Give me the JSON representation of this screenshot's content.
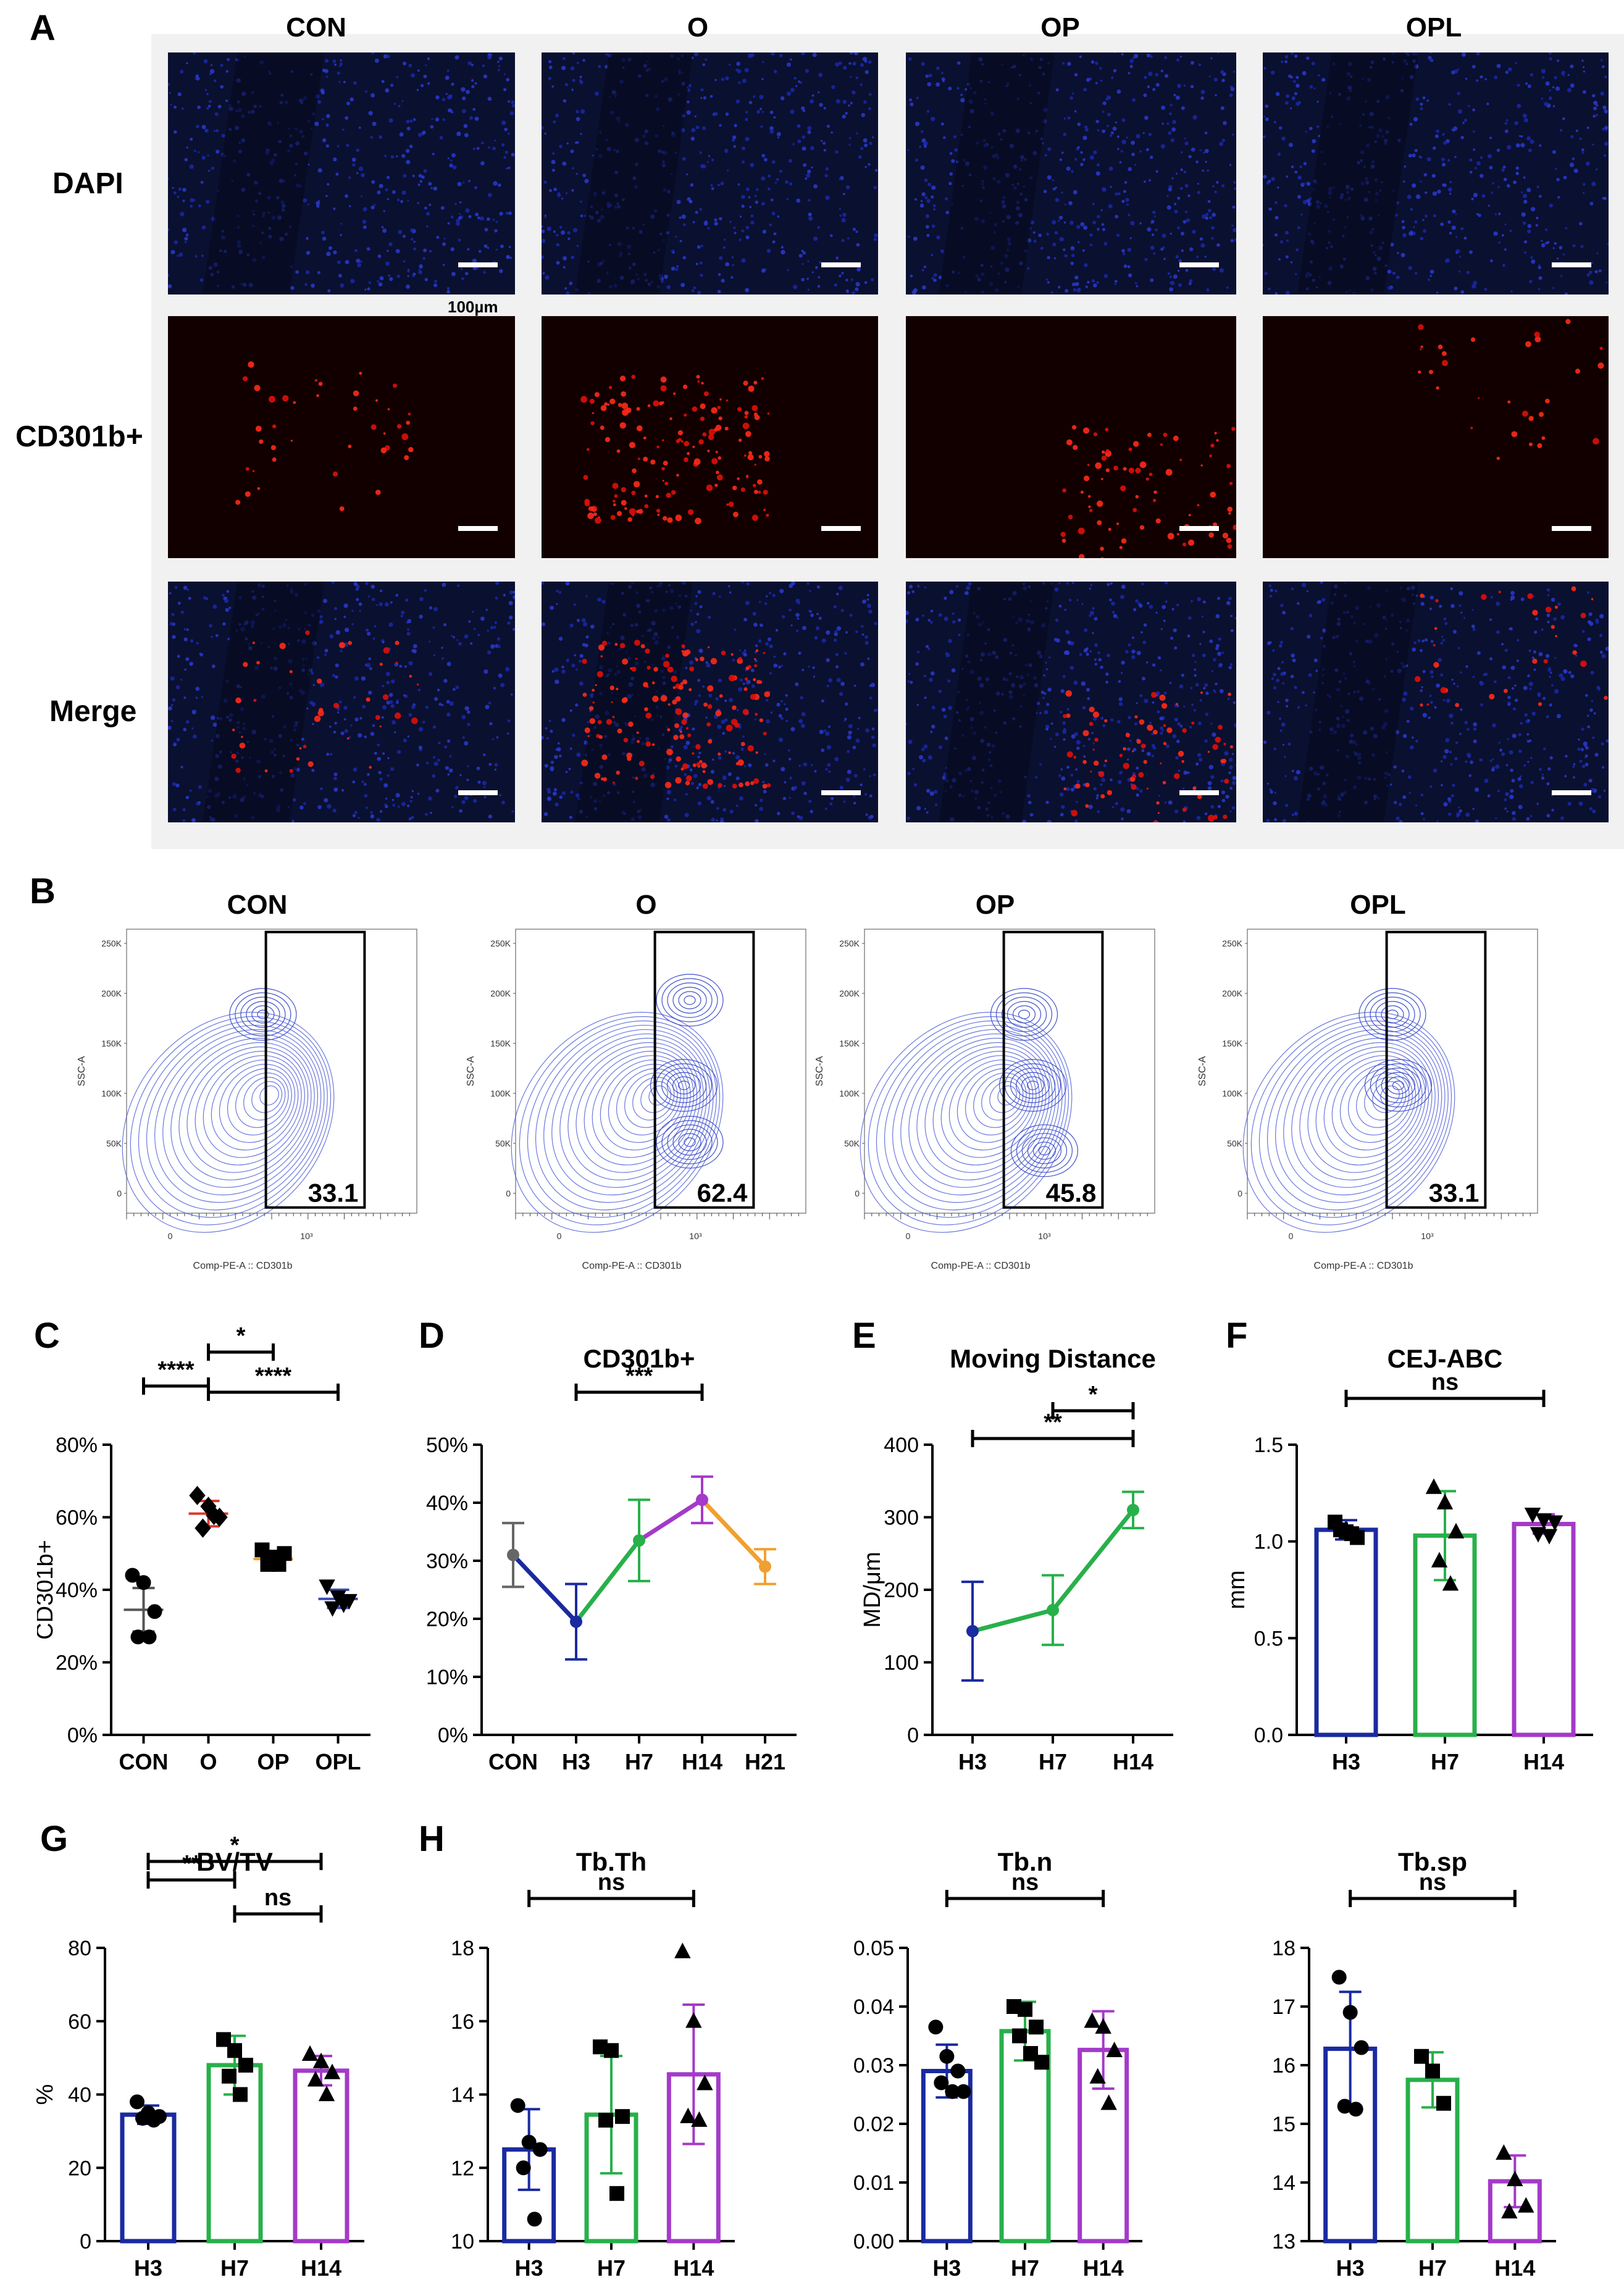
{
  "panel_labels": {
    "a": "A",
    "b": "B",
    "c": "C",
    "d": "D",
    "e": "E",
    "f": "F",
    "g": "G",
    "h": "H"
  },
  "panel_a": {
    "columns": [
      "CON",
      "O",
      "OP",
      "OPL"
    ],
    "rows": [
      "DAPI",
      "CD301b+",
      "Merge"
    ],
    "scale_label": "100µm"
  },
  "panel_b": {
    "columns": [
      "CON",
      "O",
      "OP",
      "OPL"
    ],
    "gate_values": [
      "33.1",
      "62.4",
      "45.8",
      "33.1"
    ],
    "x_axis_label": "Comp-PE-A :: CD301b",
    "y_axis_label": "SSC-A",
    "y_ticks": [
      "250K",
      "200K",
      "150K",
      "100K",
      "50K",
      "0"
    ],
    "x_ticks": [
      "0",
      "10³"
    ]
  },
  "chart_data": [
    {
      "id": "C",
      "type": "scatter",
      "title": "",
      "ylabel": "CD301b+",
      "categories": [
        "CON",
        "O",
        "OP",
        "OPL"
      ],
      "y_ticks": [
        "0%",
        "20%",
        "40%",
        "60%",
        "80%"
      ],
      "ylim": [
        0,
        80
      ],
      "means": [
        34.5,
        61,
        48.5,
        37.5
      ],
      "sd": [
        6,
        3.5,
        2,
        2.5
      ],
      "points": [
        [
          44,
          42,
          34,
          27,
          27
        ],
        [
          66,
          63,
          60,
          57,
          60.5
        ],
        [
          51,
          49,
          50,
          47,
          47
        ],
        [
          41,
          38,
          37,
          35,
          36
        ]
      ],
      "markers": [
        "circle",
        "diamond",
        "square",
        "triangle-down"
      ],
      "colors": [
        "#555555",
        "#d93a2a",
        "#f0a030",
        "#3a4ab0"
      ],
      "sig": [
        {
          "from": 0,
          "to": 1,
          "label": "****"
        },
        {
          "from": 1,
          "to": 2,
          "label": "*"
        },
        {
          "from": 1,
          "to": 3,
          "label": "****"
        }
      ]
    },
    {
      "id": "D",
      "type": "line",
      "title": "CD301b+",
      "categories": [
        "CON",
        "H3",
        "H7",
        "H14",
        "H21"
      ],
      "y_ticks": [
        "0%",
        "10%",
        "20%",
        "30%",
        "40%",
        "50%"
      ],
      "ylim": [
        0,
        50
      ],
      "values": [
        31,
        19.5,
        33.5,
        40.5,
        29
      ],
      "sd": [
        5.5,
        6.5,
        7,
        4,
        3
      ],
      "colors": [
        "#666666",
        "#1a2aa0",
        "#28b04a",
        "#a43ac8",
        "#f0a030"
      ],
      "sig": [
        {
          "from": 1,
          "to": 3,
          "label": "***"
        }
      ]
    },
    {
      "id": "E",
      "type": "line",
      "title": "Moving Distance",
      "ylabel": "MD/μm",
      "categories": [
        "H3",
        "H7",
        "H14"
      ],
      "y_ticks": [
        "0",
        "100",
        "200",
        "300",
        "400"
      ],
      "ylim": [
        0,
        400
      ],
      "values": [
        143,
        172,
        310
      ],
      "sd": [
        68,
        48,
        25
      ],
      "colors": [
        "#1a2aa0",
        "#28b04a",
        "#28b04a"
      ],
      "sig": [
        {
          "from": 0,
          "to": 2,
          "label": "**"
        },
        {
          "from": 1,
          "to": 2,
          "label": "*"
        }
      ]
    },
    {
      "id": "F",
      "type": "bar",
      "title": "CEJ-ABC",
      "ylabel": "mm",
      "categories": [
        "H3",
        "H7",
        "H14"
      ],
      "y_ticks": [
        "0.0",
        "0.5",
        "1.0",
        "1.5"
      ],
      "ylim": [
        0,
        1.5
      ],
      "values": [
        1.06,
        1.03,
        1.09
      ],
      "sd": [
        0.05,
        0.23,
        0.05
      ],
      "points": [
        [
          1.1,
          1.05,
          1.02,
          1.06,
          1.04
        ],
        [
          1.28,
          1.2,
          1.05,
          0.9,
          0.78
        ],
        [
          1.14,
          1.11,
          1.1,
          1.04,
          1.03
        ]
      ],
      "markers": [
        "square",
        "triangle",
        "triangle-down"
      ],
      "colors": [
        "#1a2aa0",
        "#28b04a",
        "#a43ac8"
      ],
      "sig": [
        {
          "from": 0,
          "to": 2,
          "label": "ns"
        }
      ]
    },
    {
      "id": "G",
      "type": "bar",
      "title": "BV/TV",
      "ylabel": "%",
      "categories": [
        "H3",
        "H7",
        "H14"
      ],
      "y_ticks": [
        "0",
        "20",
        "40",
        "60",
        "80"
      ],
      "ylim": [
        0,
        80
      ],
      "values": [
        34.5,
        48,
        46.5
      ],
      "sd": [
        2.5,
        8,
        4
      ],
      "points": [
        [
          38,
          35,
          34,
          33.5,
          33
        ],
        [
          55,
          52,
          48,
          45,
          40
        ],
        [
          51,
          49,
          46,
          44,
          40
        ]
      ],
      "markers": [
        "circle",
        "square",
        "triangle"
      ],
      "colors": [
        "#1a2aa0",
        "#28b04a",
        "#a43ac8"
      ],
      "sig": [
        {
          "from": 0,
          "to": 1,
          "label": "**"
        },
        {
          "from": 1,
          "to": 2,
          "label": "ns"
        },
        {
          "from": 0,
          "to": 2,
          "label": "*"
        }
      ]
    },
    {
      "id": "H1",
      "type": "bar",
      "title": "Tb.Th",
      "ylabel": "",
      "categories": [
        "H3",
        "H7",
        "H14"
      ],
      "y_ticks": [
        "10",
        "12",
        "14",
        "16",
        "18"
      ],
      "ylim": [
        10,
        18
      ],
      "values": [
        12.5,
        13.45,
        14.55
      ],
      "sd": [
        1.1,
        1.6,
        1.9
      ],
      "points": [
        [
          13.7,
          12.7,
          12.5,
          12,
          10.6
        ],
        [
          15.3,
          15.2,
          13.4,
          13.3,
          11.3
        ],
        [
          17.9,
          16,
          14.3,
          13.4,
          13.3
        ]
      ],
      "markers": [
        "circle",
        "square",
        "triangle"
      ],
      "colors": [
        "#1a2aa0",
        "#28b04a",
        "#a43ac8"
      ],
      "sig": [
        {
          "from": 0,
          "to": 2,
          "label": "ns"
        }
      ]
    },
    {
      "id": "H2",
      "type": "bar",
      "title": "Tb.n",
      "ylabel": "",
      "categories": [
        "H3",
        "H7",
        "H14"
      ],
      "y_ticks": [
        "0.00",
        "0.01",
        "0.02",
        "0.03",
        "0.04",
        "0.05"
      ],
      "ylim": [
        0,
        0.05
      ],
      "values": [
        0.029,
        0.0358,
        0.0326
      ],
      "sd": [
        0.0045,
        0.005,
        0.0066
      ],
      "points": [
        [
          0.0365,
          0.0315,
          0.029,
          0.027,
          0.0255,
          0.0255
        ],
        [
          0.04,
          0.0395,
          0.0365,
          0.035,
          0.032,
          0.0305
        ],
        [
          0.0375,
          0.0365,
          0.0325,
          0.028,
          0.0235
        ]
      ],
      "markers": [
        "circle",
        "square",
        "triangle"
      ],
      "colors": [
        "#1a2aa0",
        "#28b04a",
        "#a43ac8"
      ],
      "sig": [
        {
          "from": 0,
          "to": 2,
          "label": "ns"
        }
      ]
    },
    {
      "id": "H3",
      "type": "bar",
      "title": "Tb.sp",
      "ylabel": "",
      "categories": [
        "H3",
        "H7",
        "H14"
      ],
      "y_ticks": [
        "13",
        "14",
        "15",
        "16",
        "17",
        "18"
      ],
      "ylim": [
        13,
        18
      ],
      "values": [
        16.28,
        15.75,
        14.02
      ],
      "sd": [
        0.97,
        0.47,
        0.44
      ],
      "points": [
        [
          17.5,
          16.9,
          16.3,
          15.3,
          15.25
        ],
        [
          16.15,
          15.9,
          15.35
        ],
        [
          14.5,
          14.05,
          13.6,
          13.5
        ]
      ],
      "markers": [
        "circle",
        "square",
        "triangle"
      ],
      "colors": [
        "#1a2aa0",
        "#28b04a",
        "#a43ac8"
      ],
      "sig": [
        {
          "from": 0,
          "to": 2,
          "label": "ns"
        }
      ]
    }
  ]
}
